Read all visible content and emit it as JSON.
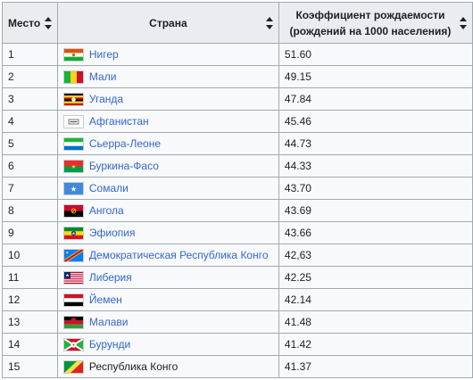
{
  "table": {
    "headers": {
      "rank": "Место",
      "country": "Страна",
      "rate_line1": "Коэффициент рождаемости",
      "rate_line2": "(рождений на 1000 населения)"
    },
    "rows": [
      {
        "rank": "1",
        "country": "Нигер",
        "flag": "niger-flag-icon",
        "value": "51.60"
      },
      {
        "rank": "2",
        "country": "Мали",
        "flag": "mali-flag-icon",
        "value": "49.15"
      },
      {
        "rank": "3",
        "country": "Уганда",
        "flag": "uganda-flag-icon",
        "value": "47.84"
      },
      {
        "rank": "4",
        "country": "Афганистан",
        "flag": "afghanistan-flag-icon",
        "value": "45.46"
      },
      {
        "rank": "5",
        "country": "Сьерра-Леоне",
        "flag": "sierra-leone-flag-icon",
        "value": "44.73"
      },
      {
        "rank": "6",
        "country": "Буркина-Фасо",
        "flag": "burkina-faso-flag-icon",
        "value": "44.33"
      },
      {
        "rank": "7",
        "country": "Сомали",
        "flag": "somalia-flag-icon",
        "value": "43.70"
      },
      {
        "rank": "8",
        "country": "Ангола",
        "flag": "angola-flag-icon",
        "value": "43.69"
      },
      {
        "rank": "9",
        "country": "Эфиопия",
        "flag": "ethiopia-flag-icon",
        "value": "43.66"
      },
      {
        "rank": "10",
        "country": "Демократическая Республика Конго",
        "flag": "dr-congo-flag-icon",
        "value": "42,63"
      },
      {
        "rank": "11",
        "country": "Либерия",
        "flag": "liberia-flag-icon",
        "value": "42.25"
      },
      {
        "rank": "12",
        "country": "Йемен",
        "flag": "yemen-flag-icon",
        "value": "42.14"
      },
      {
        "rank": "13",
        "country": "Малави",
        "flag": "malawi-flag-icon",
        "value": "41.48"
      },
      {
        "rank": "14",
        "country": "Бурунди",
        "flag": "burundi-flag-icon",
        "value": "41.42"
      },
      {
        "rank": "15",
        "country": "Республика Конго",
        "flag": "congo-flag-icon",
        "value": "41.37",
        "visited": true
      }
    ]
  },
  "colors": {
    "link": "#3366cc",
    "visited_link": "#202122",
    "header_bg": "#eaecf0",
    "cell_bg": "#f8f9fa",
    "border": "#a2a9b1"
  },
  "icons": {
    "sort": "sort-arrows-icon"
  }
}
